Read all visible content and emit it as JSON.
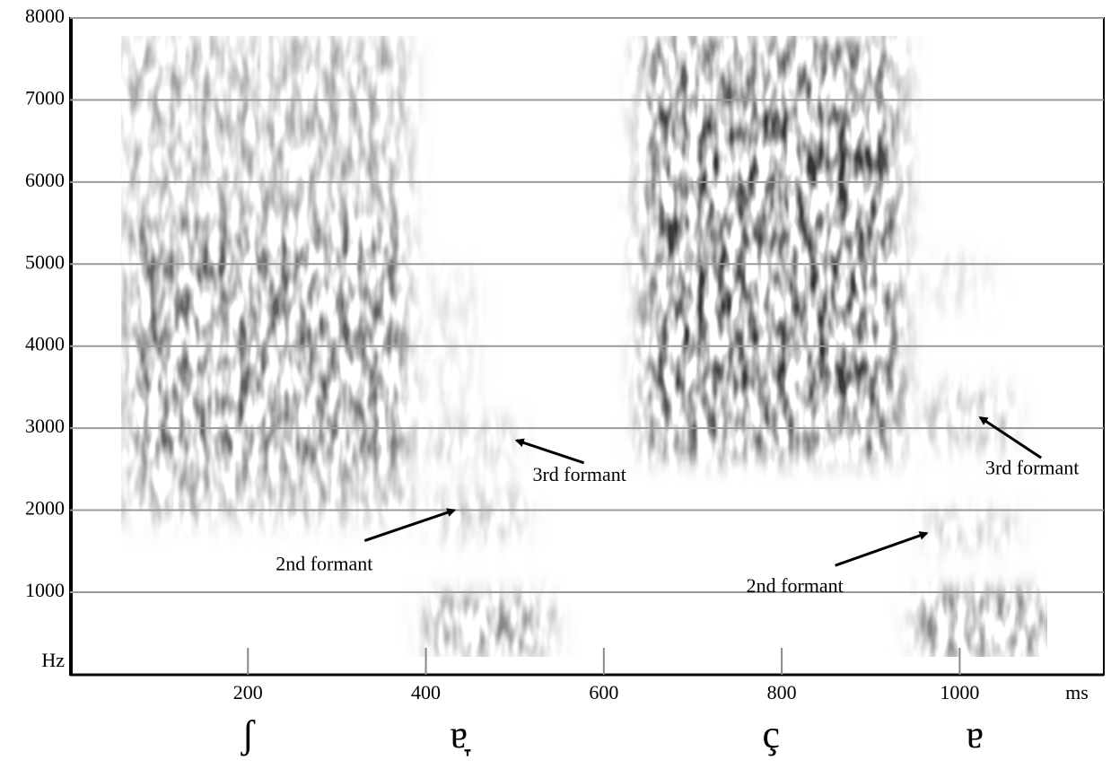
{
  "chart_data": {
    "type": "spectrogram",
    "xlabel": "ms",
    "ylabel": "Hz",
    "xlim": [
      0,
      1162
    ],
    "ylim": [
      0,
      8000
    ],
    "xticks": [
      200,
      400,
      600,
      800,
      1000
    ],
    "yticks": [
      1000,
      2000,
      3000,
      4000,
      5000,
      6000,
      7000,
      8000
    ],
    "grid": true,
    "segments": [
      {
        "label": "ʃ",
        "x": 200
      },
      {
        "label": "ɐ̞",
        "x": 437
      },
      {
        "label": "ç",
        "x": 788
      },
      {
        "label": "ɐ",
        "x": 1017
      }
    ],
    "annotations": [
      {
        "text": "3rd formant",
        "x": 502,
        "y": 2850
      },
      {
        "text": "2nd formant",
        "x": 432,
        "y": 2000
      },
      {
        "text": "3rd formant",
        "x": 1023,
        "y": 3130
      },
      {
        "text": "2nd formant",
        "x": 963,
        "y": 1720
      }
    ]
  }
}
